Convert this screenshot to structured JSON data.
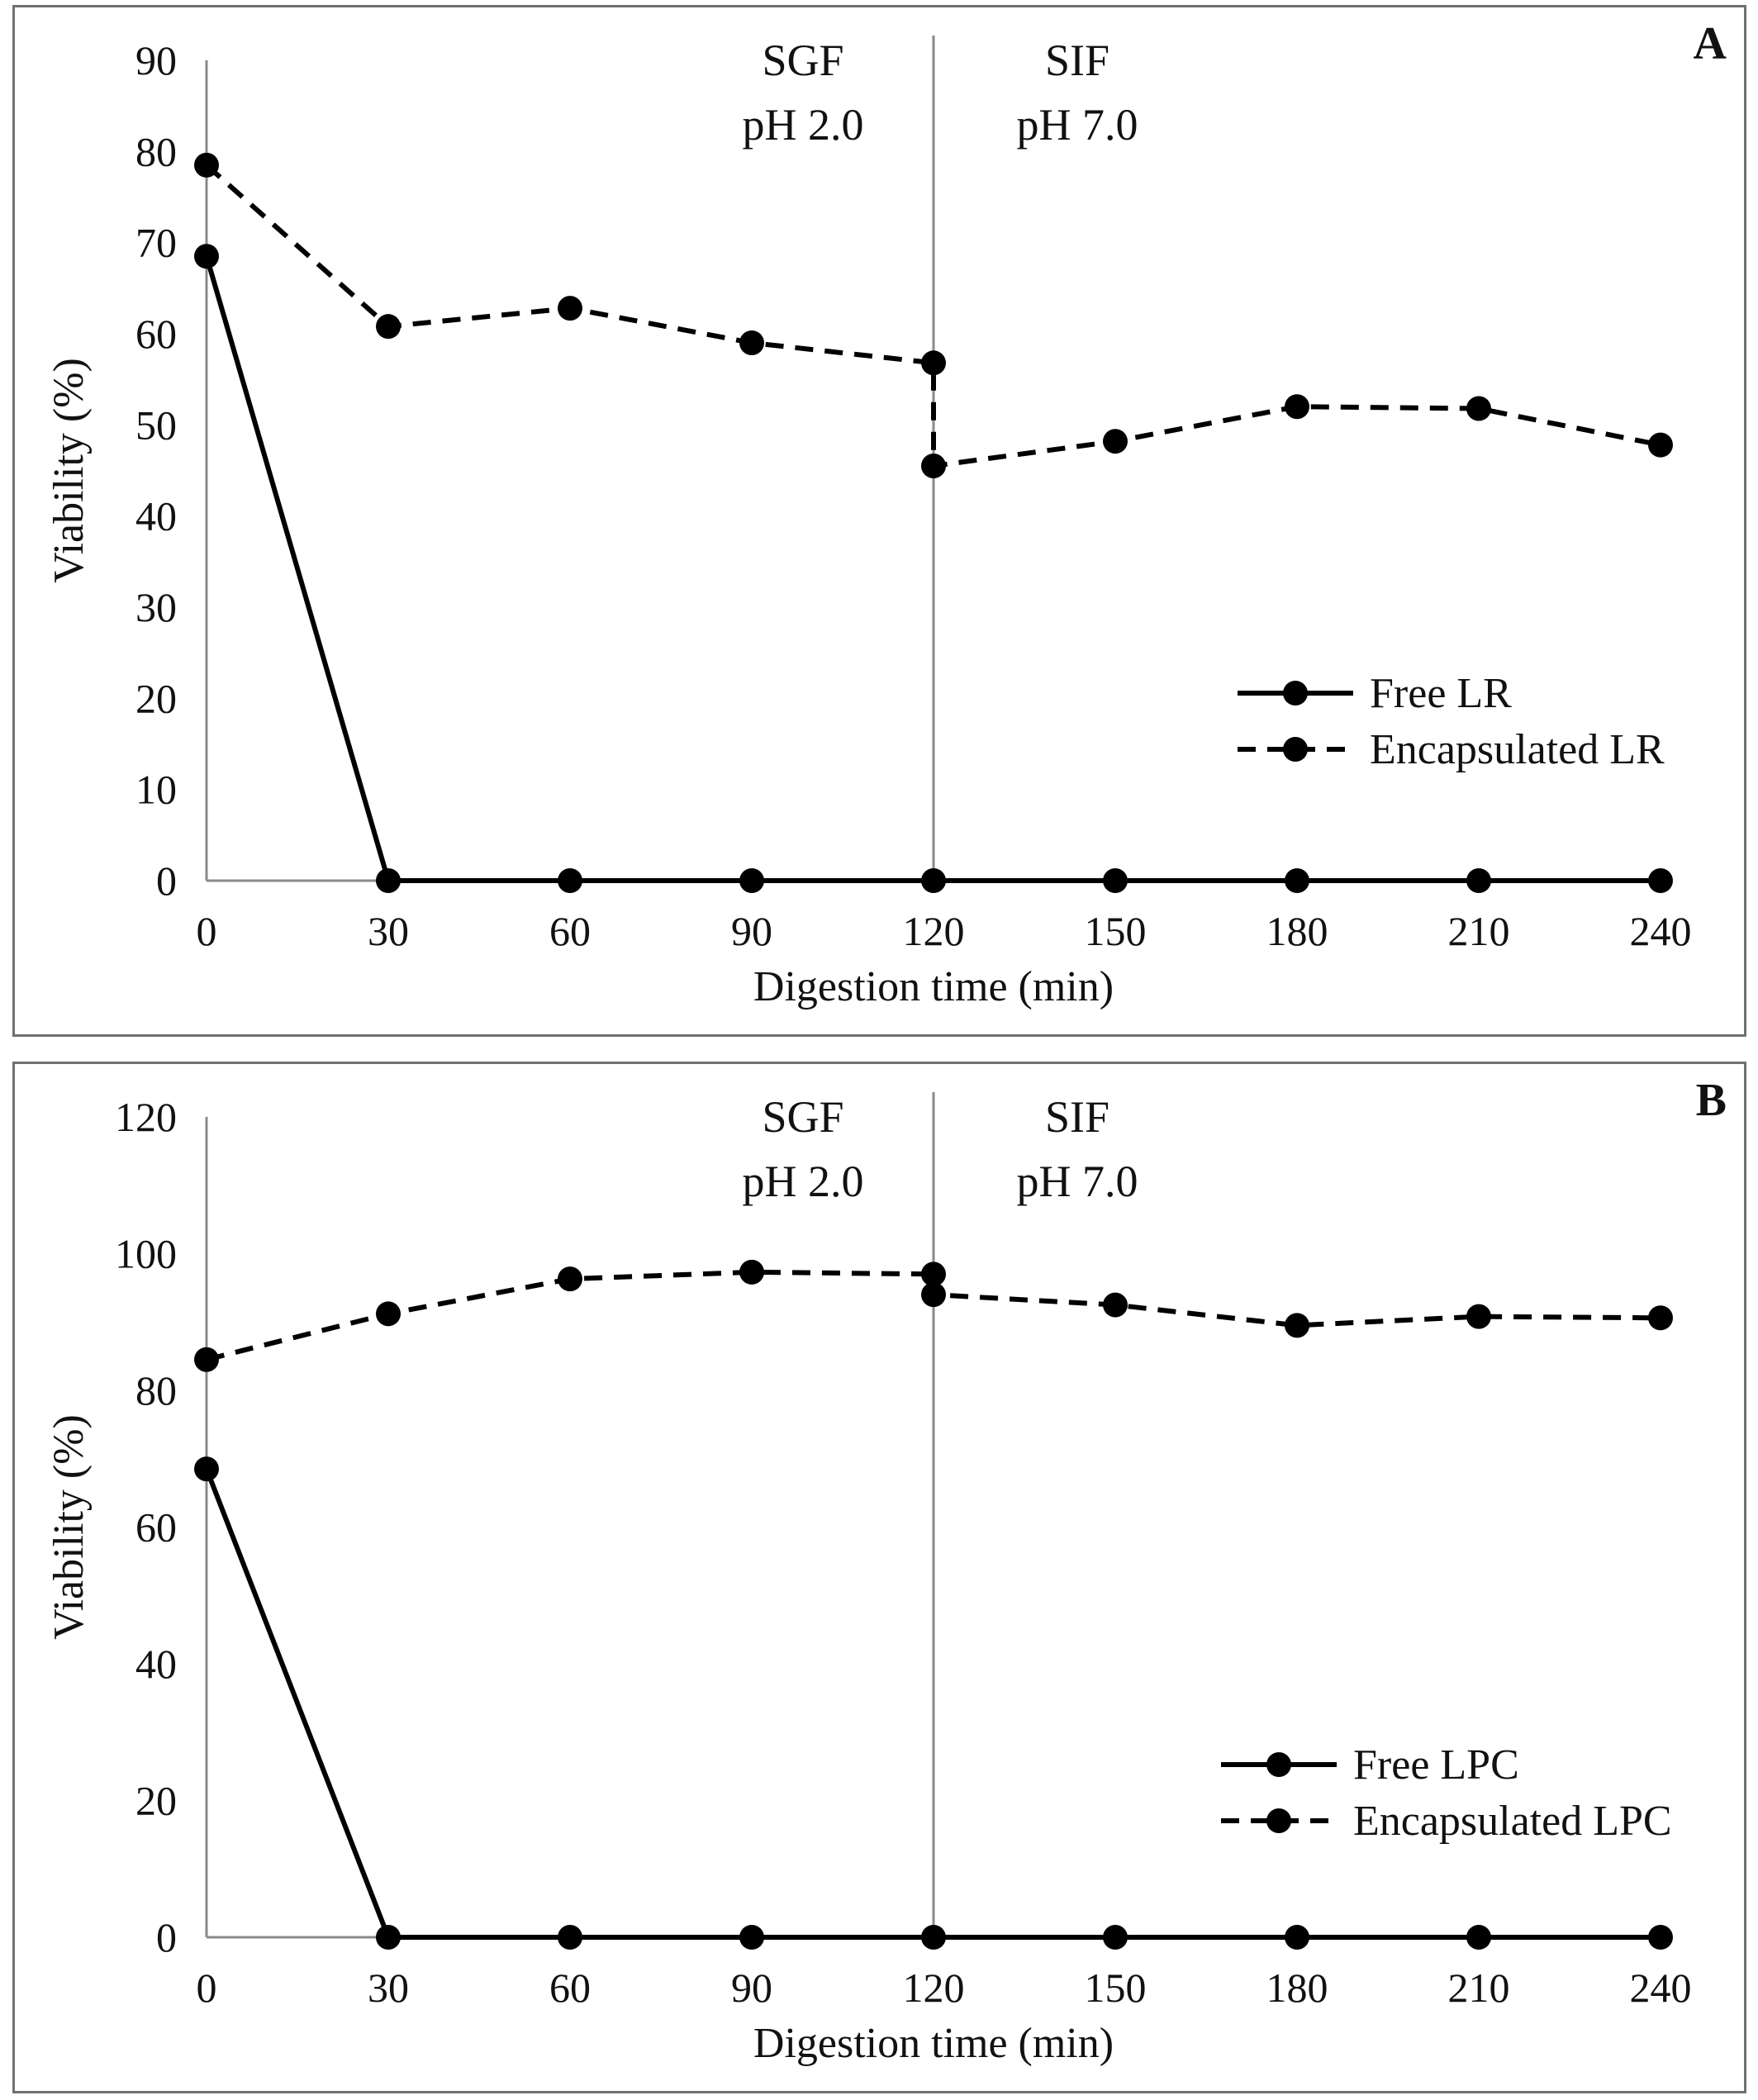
{
  "chart_data": [
    {
      "type": "line",
      "panel_label": "A",
      "xlabel": "Digestion time (min)",
      "ylabel": "Viability (%)",
      "x_ticks": [
        0,
        30,
        60,
        90,
        120,
        150,
        180,
        210,
        240
      ],
      "y_ticks": [
        0,
        10,
        20,
        30,
        40,
        50,
        60,
        70,
        80,
        90
      ],
      "xlim": [
        0,
        240
      ],
      "ylim": [
        0,
        90
      ],
      "grid": false,
      "legend_position": "middle-right",
      "phase_divider_x": 120,
      "phase_labels": [
        {
          "line1": "SGF",
          "line2": "pH 2.0"
        },
        {
          "line1": "SIF",
          "line2": "pH 7.0"
        }
      ],
      "series": [
        {
          "name": "Free LR",
          "style": "solid",
          "points": [
            [
              0,
              68.5
            ],
            [
              30,
              0
            ],
            [
              60,
              0
            ],
            [
              90,
              0
            ],
            [
              120,
              0
            ],
            [
              150,
              0
            ],
            [
              180,
              0
            ],
            [
              210,
              0
            ],
            [
              240,
              0
            ]
          ]
        },
        {
          "name": "Encapsulated LR",
          "style": "dashed",
          "points": [
            [
              0,
              78.5
            ],
            [
              30,
              60.8
            ],
            [
              60,
              62.8
            ],
            [
              90,
              59.0
            ],
            [
              120,
              56.8
            ],
            [
              120,
              45.5
            ],
            [
              150,
              48.2
            ],
            [
              180,
              52.0
            ],
            [
              210,
              51.8
            ],
            [
              240,
              47.8
            ]
          ]
        }
      ]
    },
    {
      "type": "line",
      "panel_label": "B",
      "xlabel": "Digestion time (min)",
      "ylabel": "Viability (%)",
      "x_ticks": [
        0,
        30,
        60,
        90,
        120,
        150,
        180,
        210,
        240
      ],
      "y_ticks": [
        0,
        20,
        40,
        60,
        80,
        100,
        120
      ],
      "xlim": [
        0,
        240
      ],
      "ylim": [
        0,
        120
      ],
      "grid": false,
      "legend_position": "bottom-right",
      "phase_divider_x": 120,
      "phase_labels": [
        {
          "line1": "SGF",
          "line2": "pH 2.0"
        },
        {
          "line1": "SIF",
          "line2": "pH 7.0"
        }
      ],
      "series": [
        {
          "name": "Free LPC",
          "style": "solid",
          "points": [
            [
              0,
              68.5
            ],
            [
              30,
              0
            ],
            [
              60,
              0
            ],
            [
              90,
              0
            ],
            [
              120,
              0
            ],
            [
              150,
              0
            ],
            [
              180,
              0
            ],
            [
              210,
              0
            ],
            [
              240,
              0
            ]
          ]
        },
        {
          "name": "Encapsulated LPC",
          "style": "dashed",
          "points": [
            [
              0,
              84.5
            ],
            [
              30,
              91.2
            ],
            [
              60,
              96.3
            ],
            [
              90,
              97.3
            ],
            [
              120,
              97.0
            ],
            [
              120,
              94.0
            ],
            [
              150,
              92.5
            ],
            [
              180,
              89.5
            ],
            [
              210,
              90.8
            ],
            [
              240,
              90.6
            ]
          ]
        }
      ]
    }
  ]
}
